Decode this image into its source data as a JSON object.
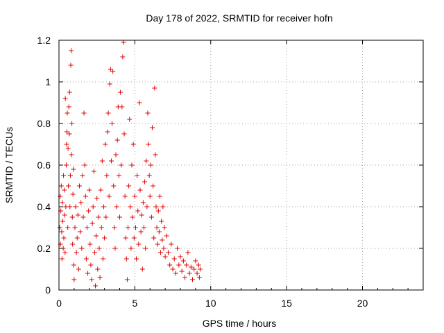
{
  "chart_data": {
    "type": "scatter",
    "title": "Day 178 of 2022, SRMTID for receiver hofn",
    "xlabel": "GPS time / hours",
    "ylabel": "SRMTID / TECUs",
    "xlim": [
      0,
      24
    ],
    "ylim": [
      0,
      1.2
    ],
    "xticks": [
      0,
      5,
      10,
      15,
      20
    ],
    "yticks": [
      0,
      0.2,
      0.4,
      0.6,
      0.8,
      1,
      1.2
    ],
    "xtick_labels": [
      "0",
      "5",
      "10",
      "15",
      "20"
    ],
    "ytick_labels": [
      "0",
      "0.2",
      "0.4",
      "0.6",
      "0.8",
      "1",
      "1.2"
    ],
    "grid": true,
    "marker": "plus",
    "color": "#e00000",
    "series": [
      {
        "name": "SRMTID",
        "points": [
          [
            0.05,
            0.3
          ],
          [
            0.08,
            0.45
          ],
          [
            0.1,
            0.22
          ],
          [
            0.12,
            0.38
          ],
          [
            0.15,
            0.5
          ],
          [
            0.18,
            0.28
          ],
          [
            0.2,
            0.15
          ],
          [
            0.22,
            0.42
          ],
          [
            0.25,
            0.33
          ],
          [
            0.28,
            0.2
          ],
          [
            0.3,
            0.55
          ],
          [
            0.32,
            0.25
          ],
          [
            0.35,
            0.48
          ],
          [
            0.38,
            0.36
          ],
          [
            0.4,
            0.18
          ],
          [
            0.42,
            0.92
          ],
          [
            0.45,
            0.4
          ],
          [
            0.48,
            0.6
          ],
          [
            0.5,
            0.7
          ],
          [
            0.52,
            0.76
          ],
          [
            0.55,
            0.85
          ],
          [
            0.58,
            0.3
          ],
          [
            0.6,
            0.68
          ],
          [
            0.62,
            0.5
          ],
          [
            0.65,
            0.88
          ],
          [
            0.68,
            0.75
          ],
          [
            0.7,
            0.95
          ],
          [
            0.72,
            0.4
          ],
          [
            0.75,
            0.55
          ],
          [
            0.78,
            1.08
          ],
          [
            0.8,
            1.15
          ],
          [
            0.82,
            0.65
          ],
          [
            0.85,
            0.8
          ],
          [
            0.88,
            0.35
          ],
          [
            0.9,
            0.22
          ],
          [
            0.92,
            0.46
          ],
          [
            0.95,
            0.58
          ],
          [
            0.98,
            0.12
          ],
          [
            1.0,
            0.05
          ],
          [
            1.05,
            0.3
          ],
          [
            1.1,
            0.4
          ],
          [
            1.15,
            0.18
          ],
          [
            1.2,
            0.25
          ],
          [
            1.25,
            0.36
          ],
          [
            1.3,
            0.1
          ],
          [
            1.35,
            0.5
          ],
          [
            1.4,
            0.28
          ],
          [
            1.45,
            0.42
          ],
          [
            1.5,
            0.2
          ],
          [
            1.55,
            0.55
          ],
          [
            1.6,
            0.35
          ],
          [
            1.65,
            0.85
          ],
          [
            1.7,
            0.6
          ],
          [
            1.75,
            0.45
          ],
          [
            1.8,
            0.15
          ],
          [
            1.85,
            0.3
          ],
          [
            1.9,
            0.08
          ],
          [
            1.95,
            0.38
          ],
          [
            2.0,
            0.48
          ],
          [
            2.05,
            0.22
          ],
          [
            2.1,
            0.12
          ],
          [
            2.15,
            0.05
          ],
          [
            2.2,
            0.32
          ],
          [
            2.25,
            0.4
          ],
          [
            2.3,
            0.57
          ],
          [
            2.35,
            0.18
          ],
          [
            2.4,
            0.02
          ],
          [
            2.45,
            0.26
          ],
          [
            2.5,
            0.44
          ],
          [
            2.55,
            0.1
          ],
          [
            2.6,
            0.35
          ],
          [
            2.65,
            0.2
          ],
          [
            2.7,
            0.06
          ],
          [
            2.75,
            0.48
          ],
          [
            2.8,
            0.3
          ],
          [
            2.85,
            0.62
          ],
          [
            2.9,
            0.15
          ],
          [
            2.95,
            0.4
          ],
          [
            3.0,
            0.25
          ],
          [
            3.05,
            0.7
          ],
          [
            3.1,
            0.35
          ],
          [
            3.15,
            0.55
          ],
          [
            3.2,
            0.76
          ],
          [
            3.25,
            0.85
          ],
          [
            3.3,
            0.45
          ],
          [
            3.35,
            0.99
          ],
          [
            3.4,
            1.06
          ],
          [
            3.45,
            0.62
          ],
          [
            3.5,
            0.8
          ],
          [
            3.55,
            1.05
          ],
          [
            3.6,
            0.5
          ],
          [
            3.65,
            0.3
          ],
          [
            3.7,
            0.2
          ],
          [
            3.75,
            0.65
          ],
          [
            3.8,
            0.4
          ],
          [
            3.85,
            0.72
          ],
          [
            3.9,
            0.88
          ],
          [
            3.95,
            0.55
          ],
          [
            4.0,
            0.35
          ],
          [
            4.05,
            0.95
          ],
          [
            4.1,
            0.6
          ],
          [
            4.15,
            0.88
          ],
          [
            4.2,
            1.12
          ],
          [
            4.25,
            1.19
          ],
          [
            4.3,
            0.75
          ],
          [
            4.35,
            0.45
          ],
          [
            4.4,
            0.25
          ],
          [
            4.45,
            0.15
          ],
          [
            4.5,
            0.05
          ],
          [
            4.55,
            0.3
          ],
          [
            4.6,
            0.5
          ],
          [
            4.65,
            0.82
          ],
          [
            4.7,
            0.4
          ],
          [
            4.75,
            0.2
          ],
          [
            4.8,
            0.6
          ],
          [
            4.85,
            0.35
          ],
          [
            4.9,
            0.7
          ],
          [
            4.95,
            0.25
          ],
          [
            5.0,
            0.45
          ],
          [
            5.05,
            0.3
          ],
          [
            5.1,
            0.15
          ],
          [
            5.15,
            0.55
          ],
          [
            5.2,
            0.38
          ],
          [
            5.25,
            0.22
          ],
          [
            5.3,
            0.9
          ],
          [
            5.35,
            0.48
          ],
          [
            5.4,
            0.28
          ],
          [
            5.45,
            0.36
          ],
          [
            5.5,
            0.1
          ],
          [
            5.55,
            0.42
          ],
          [
            5.6,
            0.3
          ],
          [
            5.65,
            0.52
          ],
          [
            5.7,
            0.2
          ],
          [
            5.75,
            0.62
          ],
          [
            5.8,
            0.4
          ],
          [
            5.85,
            0.85
          ],
          [
            5.9,
            0.7
          ],
          [
            5.95,
            0.55
          ],
          [
            6.0,
            0.45
          ],
          [
            6.05,
            0.6
          ],
          [
            6.1,
            0.35
          ],
          [
            6.15,
            0.78
          ],
          [
            6.2,
            0.5
          ],
          [
            6.25,
            0.25
          ],
          [
            6.3,
            0.97
          ],
          [
            6.35,
            0.65
          ],
          [
            6.4,
            0.4
          ],
          [
            6.45,
            0.3
          ],
          [
            6.5,
            0.22
          ],
          [
            6.55,
            0.38
          ],
          [
            6.6,
            0.28
          ],
          [
            6.65,
            0.45
          ],
          [
            6.7,
            0.18
          ],
          [
            6.75,
            0.33
          ],
          [
            6.8,
            0.24
          ],
          [
            6.85,
            0.4
          ],
          [
            6.9,
            0.2
          ],
          [
            6.95,
            0.3
          ],
          [
            7.0,
            0.16
          ],
          [
            7.1,
            0.26
          ],
          [
            7.2,
            0.18
          ],
          [
            7.3,
            0.12
          ],
          [
            7.4,
            0.22
          ],
          [
            7.5,
            0.1
          ],
          [
            7.6,
            0.15
          ],
          [
            7.7,
            0.08
          ],
          [
            7.8,
            0.2
          ],
          [
            7.9,
            0.12
          ],
          [
            8.0,
            0.16
          ],
          [
            8.1,
            0.09
          ],
          [
            8.2,
            0.14
          ],
          [
            8.3,
            0.06
          ],
          [
            8.4,
            0.12
          ],
          [
            8.5,
            0.18
          ],
          [
            8.6,
            0.08
          ],
          [
            8.7,
            0.11
          ],
          [
            8.8,
            0.05
          ],
          [
            8.9,
            0.1
          ],
          [
            9.0,
            0.14
          ],
          [
            9.1,
            0.08
          ],
          [
            9.2,
            0.12
          ],
          [
            9.25,
            0.06
          ],
          [
            9.3,
            0.1
          ]
        ]
      }
    ]
  }
}
